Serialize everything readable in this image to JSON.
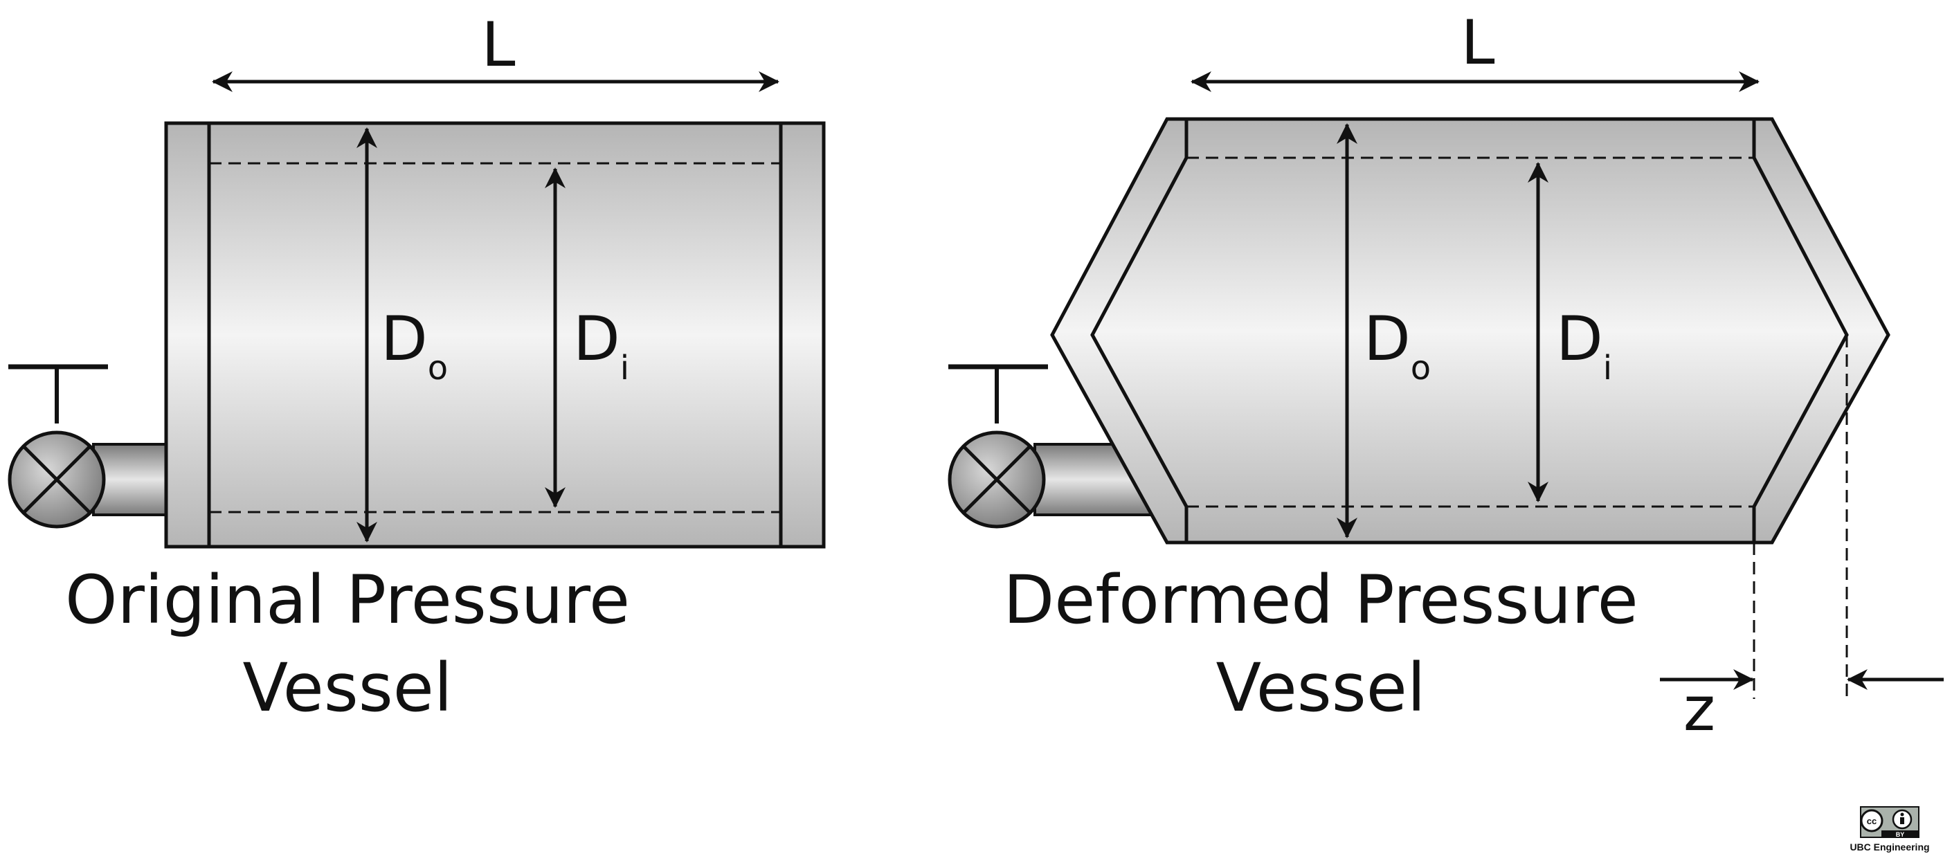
{
  "left": {
    "length_label": "L",
    "outer_diameter": {
      "letter": "D",
      "subscript": "o"
    },
    "inner_diameter": {
      "letter": "D",
      "subscript": "i"
    },
    "caption": {
      "line1": "Original Pressure",
      "line2": "Vessel"
    }
  },
  "right": {
    "length_label": "L",
    "outer_diameter": {
      "letter": "D",
      "subscript": "o"
    },
    "inner_diameter": {
      "letter": "D",
      "subscript": "i"
    },
    "caption": {
      "line1": "Deformed Pressure",
      "line2": "Vessel"
    },
    "displacement_label": "z"
  },
  "license": {
    "cc": "cc",
    "by": "BY",
    "org": "UBC Engineering"
  }
}
